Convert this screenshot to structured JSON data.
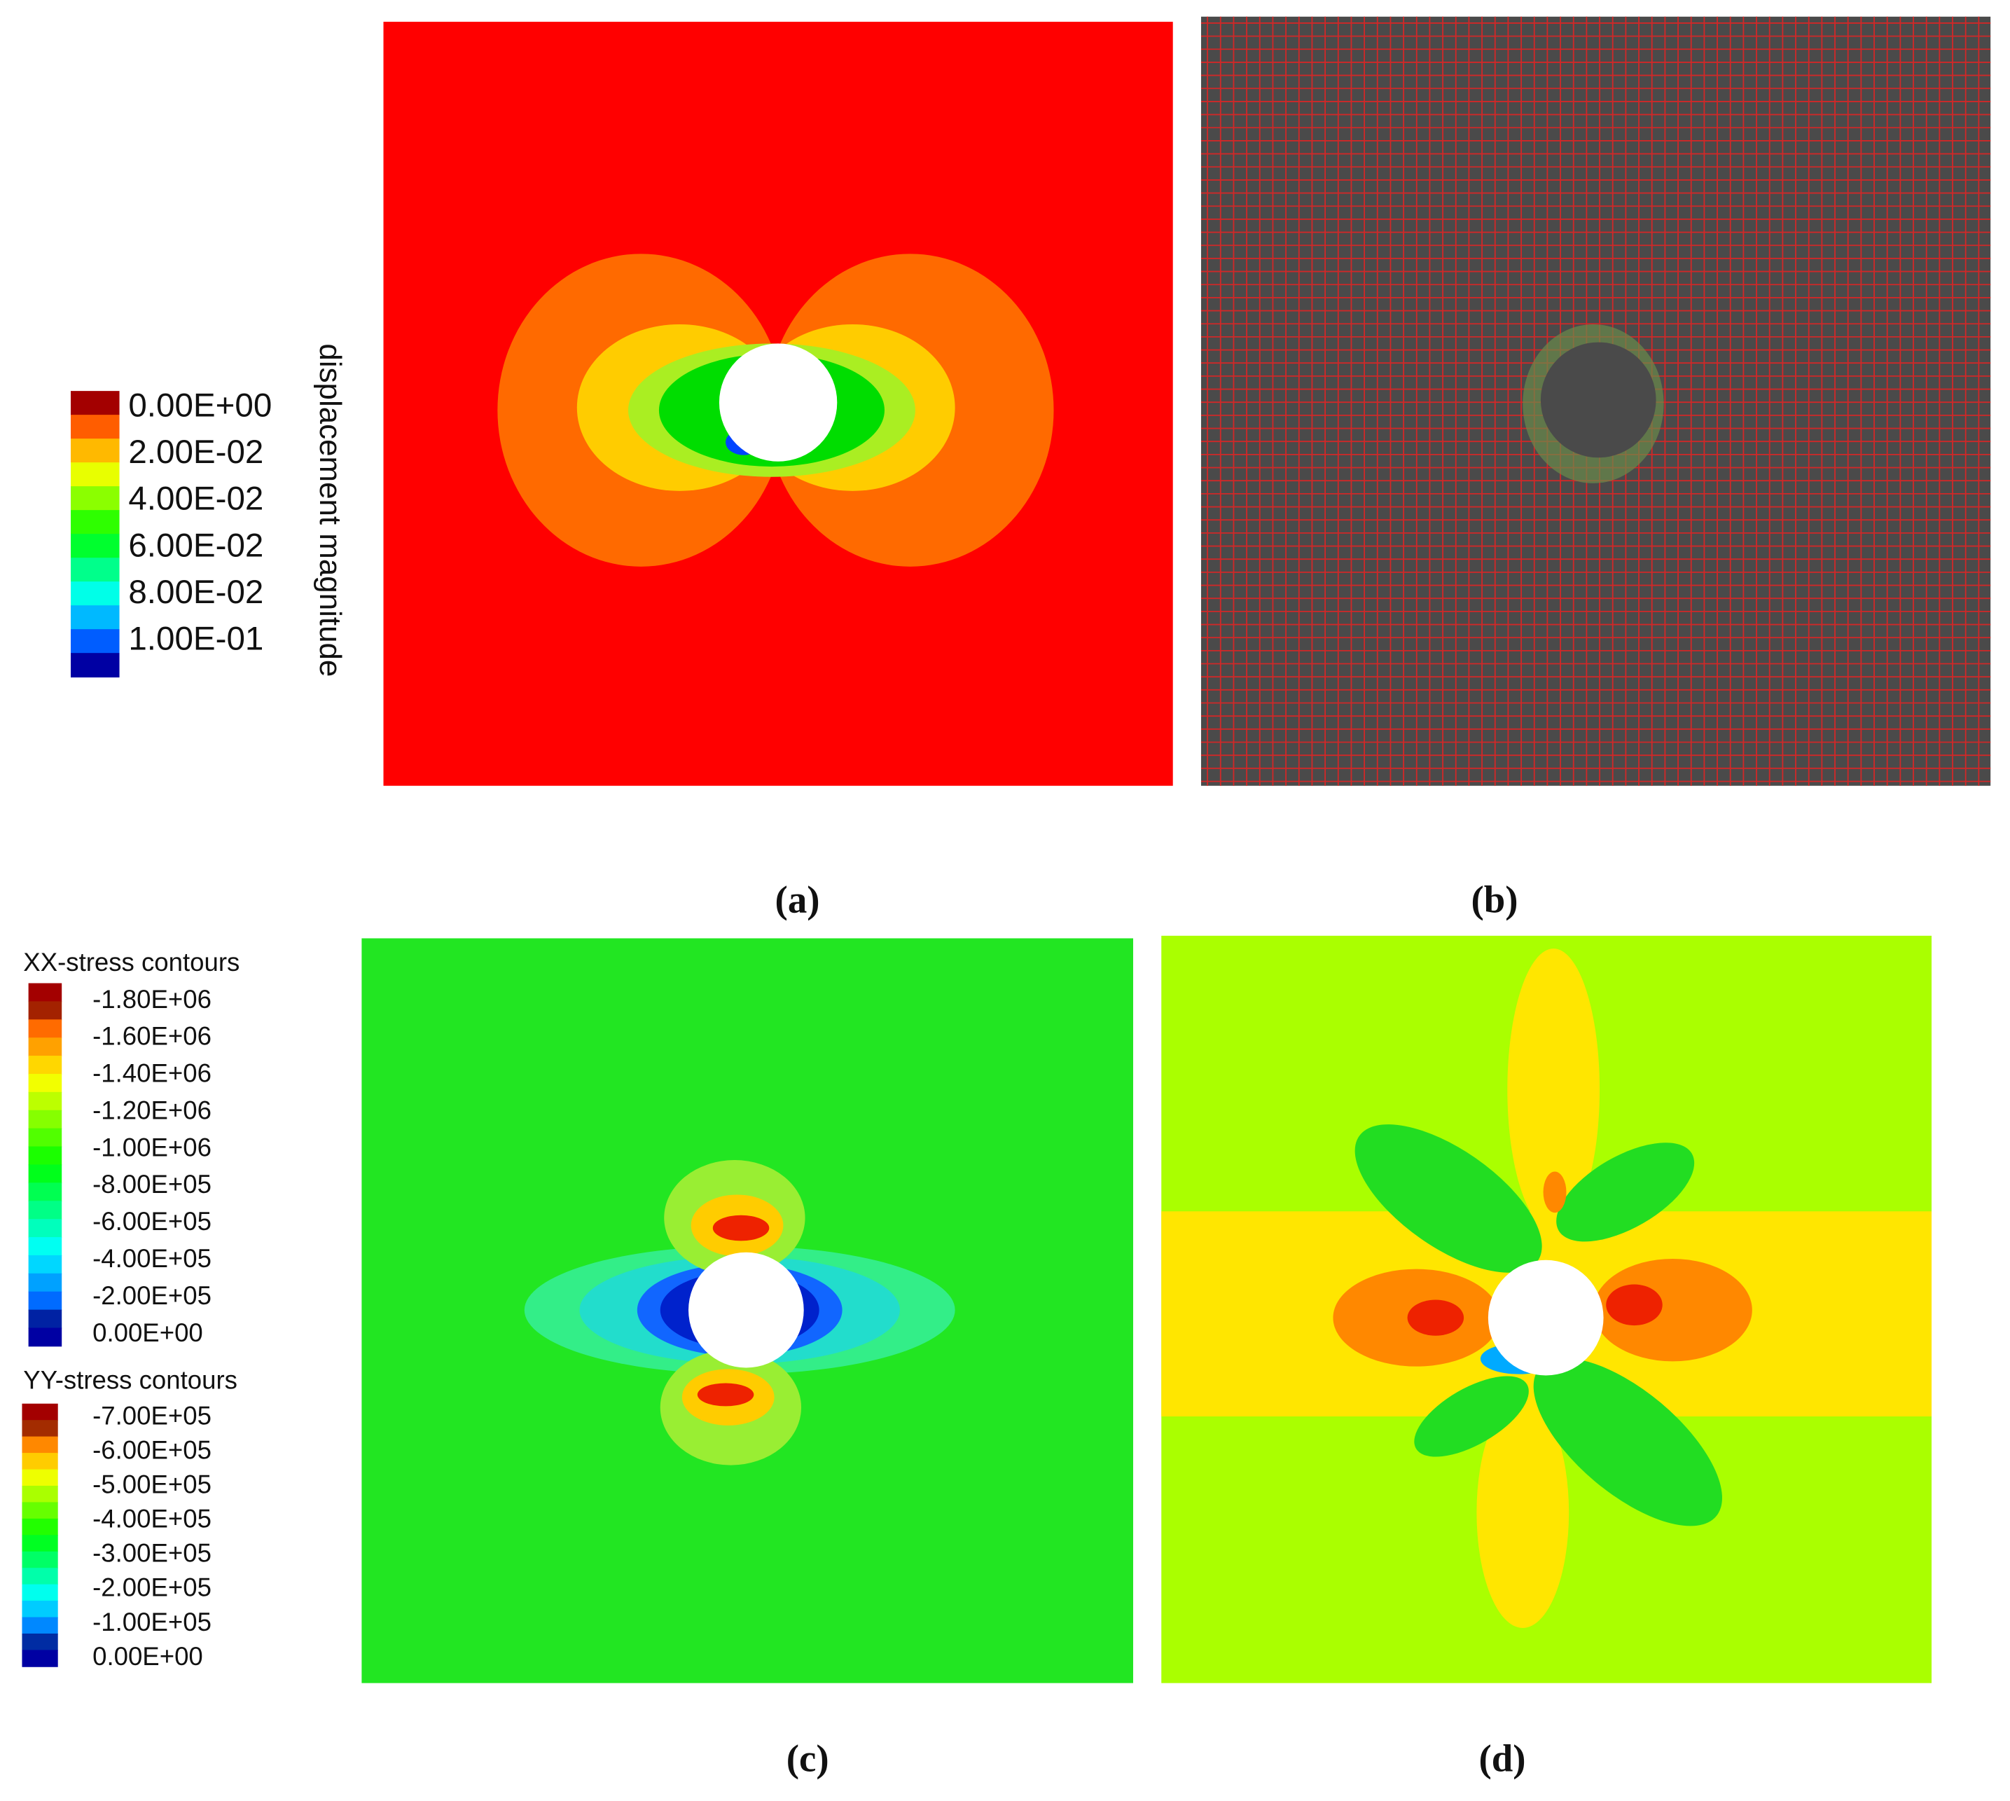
{
  "legends": [
    {
      "title": "displacement magnitude",
      "labels": [
        "0.00E+00",
        "2.00E-02",
        "4.00E-02",
        "6.00E-02",
        "8.00E-02",
        "1.00E-01"
      ]
    },
    {
      "title": "XX-stress contours",
      "labels": [
        "-1.80E+06",
        "-1.60E+06",
        "-1.40E+06",
        "-1.20E+06",
        "-1.00E+06",
        "-8.00E+05",
        "-6.00E+05",
        "-4.00E+05",
        "-2.00E+05",
        "0.00E+00"
      ]
    },
    {
      "title": "YY-stress contours",
      "labels": [
        "-7.00E+05",
        "-6.00E+05",
        "-5.00E+05",
        "-4.00E+05",
        "-3.00E+05",
        "-2.00E+05",
        "-1.00E+05",
        "0.00E+00"
      ]
    }
  ],
  "panels": [
    {
      "label": "(a)"
    },
    {
      "label": "(b)"
    },
    {
      "label": "(c)"
    },
    {
      "label": "(d)"
    }
  ]
}
